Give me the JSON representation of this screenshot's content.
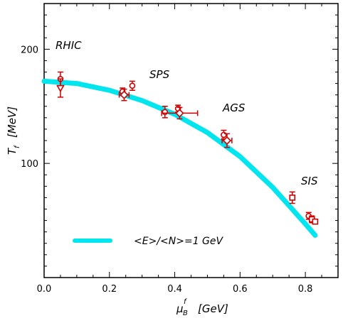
{
  "chart_data": {
    "type": "scatter",
    "title": "",
    "xlabel": {
      "symbol": "μ",
      "sub": "B",
      "sup": "f",
      "unit": "[GeV]"
    },
    "ylabel": {
      "symbol": "T",
      "sub": "f",
      "unit": "[MeV]"
    },
    "xlim": [
      0,
      0.9
    ],
    "ylim": [
      0,
      240
    ],
    "x_ticks": [
      "0.0",
      "0.2",
      "0.4",
      "0.6",
      "0.8"
    ],
    "x_tick_values": [
      0,
      0.2,
      0.4,
      0.6,
      0.8
    ],
    "y_ticks": [
      "100",
      "200"
    ],
    "y_tick_values": [
      100,
      200
    ],
    "annotations": [
      {
        "text": "RHIC",
        "x": 0.07,
        "y": 203
      },
      {
        "text": "SPS",
        "x": 0.365,
        "y": 156
      },
      {
        "text": "AGS",
        "x": 0.59,
        "y": 133
      },
      {
        "text": "SIS",
        "x": 0.87,
        "y": 56
      }
    ],
    "legend": {
      "position": "bottom-left",
      "entries": [
        {
          "label": "<E>/<N>=1 GeV",
          "color": "#00e5ee"
        }
      ]
    },
    "curve": {
      "label": "<E>/<N>=1 GeV",
      "color": "#00e5ee",
      "x": [
        0,
        0.1,
        0.2,
        0.3,
        0.4,
        0.5,
        0.6,
        0.7,
        0.75,
        0.8,
        0.83
      ],
      "y": [
        172,
        170,
        164,
        155,
        143,
        127,
        106,
        79,
        63,
        47,
        37
      ]
    },
    "marker_color": "#d00000",
    "series": [
      {
        "marker": "circle",
        "points": [
          {
            "x": 0.05,
            "y": 174,
            "yerr": 6
          },
          {
            "x": 0.24,
            "y": 163,
            "yerr": 3
          },
          {
            "x": 0.27,
            "y": 168,
            "yerr": 4
          },
          {
            "x": 0.37,
            "y": 145,
            "yerr": 5
          },
          {
            "x": 0.41,
            "y": 148,
            "yerr": 3
          },
          {
            "x": 0.55,
            "y": 125,
            "yerr": 4
          },
          {
            "x": 0.81,
            "y": 54,
            "yerr": 3
          }
        ]
      },
      {
        "marker": "triangle-down",
        "points": [
          {
            "x": 0.05,
            "y": 166,
            "yerr": 8
          }
        ]
      },
      {
        "marker": "diamond",
        "points": [
          {
            "x": 0.245,
            "y": 160,
            "xerr": 0.015,
            "yerr": 5
          },
          {
            "x": 0.415,
            "y": 144,
            "xerr": 0.055,
            "yerr": 5
          },
          {
            "x": 0.56,
            "y": 120,
            "xerr": 0.015,
            "yerr": 6
          }
        ]
      },
      {
        "marker": "square",
        "points": [
          {
            "x": 0.76,
            "y": 70,
            "yerr": 5
          },
          {
            "x": 0.82,
            "y": 51,
            "yerr": 3
          },
          {
            "x": 0.83,
            "y": 49,
            "yerr": 2
          }
        ]
      }
    ]
  }
}
